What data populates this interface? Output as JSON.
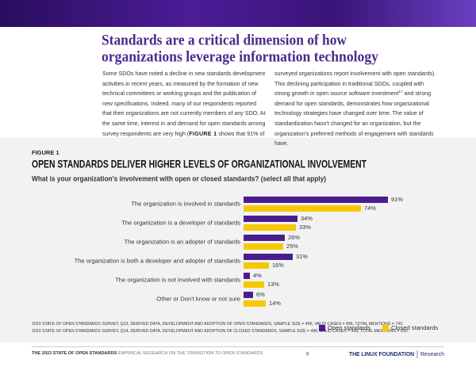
{
  "header": {
    "title_lines": [
      "Standards are a critical dimension of how",
      "organizations leverage information technology"
    ]
  },
  "body": {
    "columns": [
      [
        "Some SDOs have noted a decline in new standards development activities in recent years, as measured by the formation of new technical committees or working groups and the publication of new specifications. Indeed, many of our respondents reported that their organizations are not currently members of any SDO. At the same time, interest in and demand for open standards among survey respondents are very high (",
        "FIGURE 1",
        " shows that 91% of"
      ],
      [
        "surveyed organizations report involvement with open standards). This declining participation in traditional SDOs, coupled with strong growth in open source software investment",
        "17",
        " and strong demand for open standards, demonstrates how organizational technology strategies have changed over time. The value of standardization hasn't changed for an organization, but the organization's preferred methods of engagement with standards have."
      ]
    ]
  },
  "figure": {
    "label": "FIGURE 1",
    "title": "OPEN STANDARDS DELIVER HIGHER LEVELS OF ORGANIZATIONAL INVOLVEMENT",
    "subtitle": "What is your organization's involvement with open or closed standards? (select all that apply)",
    "chart": {
      "type": "bar",
      "orientation": "horizontal",
      "categories": [
        "The organization is involved in standards",
        "The organization is a developer of standards",
        "The organization is an adopter of standards",
        "The organization is both a developer and adopter of standards",
        "The organization is not involved with standards",
        "Other or Don't know or not sure"
      ],
      "series": [
        {
          "name": "Open standards",
          "color": "#4a1d8f",
          "values": [
            91,
            34,
            26,
            31,
            4,
            6
          ],
          "value_labels": [
            "91%",
            "34%",
            "26%",
            "31%",
            "4%",
            "6%"
          ]
        },
        {
          "name": "Closed standards",
          "color": "#f7c800",
          "values": [
            74,
            33,
            25,
            16,
            13,
            14
          ],
          "value_labels": [
            "74%",
            "33%",
            "25%",
            "16%",
            "13%",
            "14%"
          ]
        }
      ],
      "legend": "bottom-right"
    },
    "notes": [
      "2023 STATE OF OPEN STANDARDS SURVEY, Q13, DERIVED DATA, DEVELOPMENT AND ADOPTION OF OPEN STANDARDS, SAMPLE SIZE = 496, VALID CASES = 496, TOTAL MENTIONS = 743.",
      "2023 STATE OF OPEN STANDARDS SURVEY, Q14, DERIVED DATA, DEVELOPMENT AND ADOPTION OF CLOSED STANDARDS, SAMPLE SIZE = 496, VALID CASES = 496, TOTAL MENTIONS = 630."
    ]
  },
  "footer": {
    "report": "THE 2023 STATE OF OPEN STANDARDS",
    "subtitle": " EMPIRICAL RESEARCH ON THE TRANSITION TO OPEN STANDARDS",
    "page": "9",
    "logo": "THE LINUX FOUNDATION",
    "logo_sub": "Research"
  }
}
